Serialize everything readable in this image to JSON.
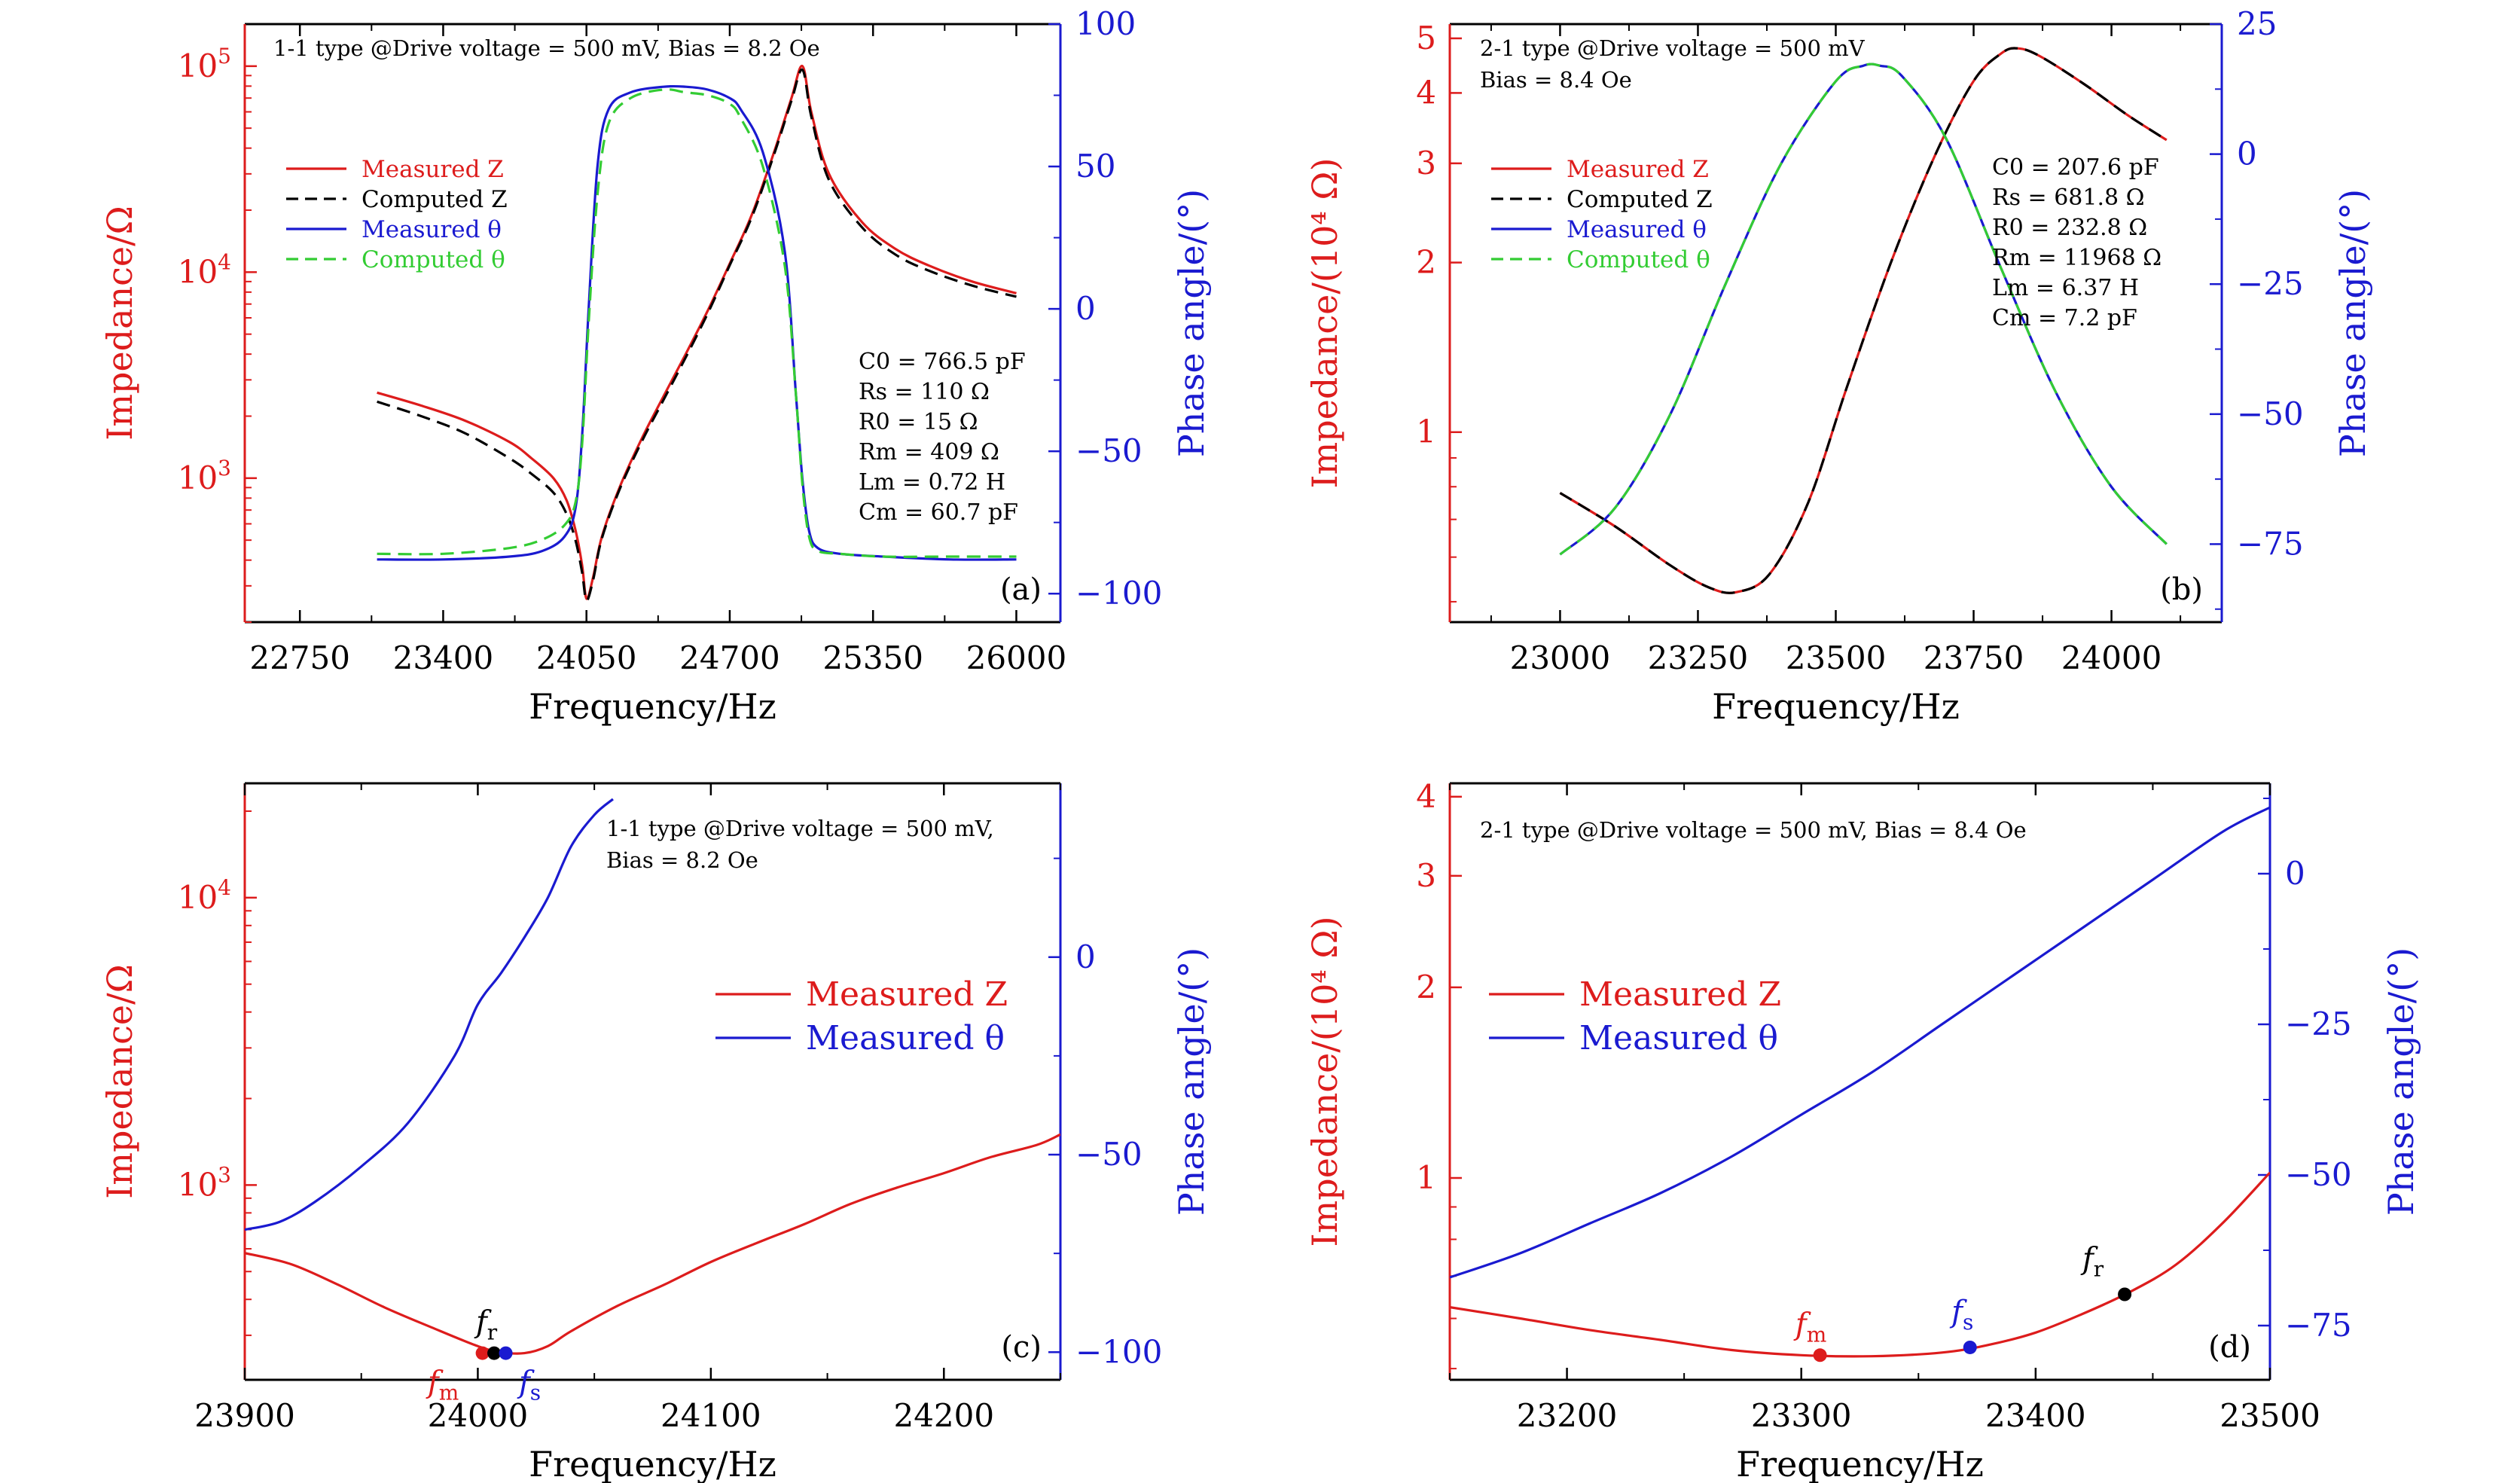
{
  "colors": {
    "red": "#dd1c1c",
    "blue": "#1a1ad0",
    "black": "#000000",
    "green": "#33cc33",
    "frame": "#000000"
  },
  "chart_data": [
    {
      "id": "a",
      "type": "line",
      "panel_label": "(a)",
      "annotation_lines": [
        "1-1 type @Drive voltage = 500 mV, Bias = 8.2 Oe"
      ],
      "xlabel": "Frequency/Hz",
      "ylabel": "Impedance/Ω",
      "y2label": "Phase angle/(°)",
      "xlim": [
        22500,
        26200
      ],
      "xticks": [
        "22750",
        "23400",
        "24050",
        "24700",
        "25350",
        "26000"
      ],
      "y_scale": "log",
      "ylim": [
        200,
        160000
      ],
      "yticks": [
        {
          "value": 1000,
          "base": "10",
          "exp": "3"
        },
        {
          "value": 10000,
          "base": "10",
          "exp": "4"
        },
        {
          "value": 100000,
          "base": "10",
          "exp": "5"
        }
      ],
      "y2lim": [
        -110,
        100
      ],
      "y2ticks": [
        "100",
        "50",
        "0",
        "−50",
        "−100"
      ],
      "legend": {
        "placement": "upper-left",
        "entries": [
          {
            "text": "Measured Z",
            "color": "red",
            "dash": false
          },
          {
            "text": "Computed Z",
            "color": "black",
            "dash": true
          },
          {
            "text": "Measured θ",
            "color": "blue",
            "dash": false
          },
          {
            "text": "Computed θ",
            "color": "green",
            "dash": true
          }
        ]
      },
      "params": [
        "C0 = 766.5 pF",
        "Rs = 110 Ω",
        "R0 = 15 Ω",
        "Rm = 409 Ω",
        "Lm = 0.72 H",
        "Cm = 60.7 pF"
      ],
      "series": [
        {
          "name": "Measured Z",
          "axis": "left",
          "color": "red",
          "x": [
            23100,
            23300,
            23500,
            23700,
            23800,
            23900,
            23960,
            24000,
            24030,
            24050,
            24080,
            24120,
            24200,
            24300,
            24400,
            24500,
            24600,
            24700,
            24800,
            24900,
            24980,
            25030,
            25070,
            25150,
            25300,
            25450,
            25600,
            25800,
            26000
          ],
          "y": [
            2600,
            2250,
            1900,
            1500,
            1250,
            1000,
            780,
            560,
            380,
            260,
            330,
            520,
            900,
            1550,
            2500,
            4000,
            6500,
            11000,
            19000,
            38000,
            70000,
            100000,
            60000,
            30000,
            17500,
            13000,
            10800,
            9000,
            7900
          ]
        },
        {
          "name": "Computed Z",
          "axis": "left",
          "color": "black",
          "dash": true,
          "x": [
            23100,
            23300,
            23500,
            23700,
            23800,
            23900,
            23960,
            24000,
            24030,
            24050,
            24080,
            24120,
            24200,
            24300,
            24400,
            24500,
            24600,
            24700,
            24800,
            24900,
            24980,
            25030,
            25070,
            25150,
            25300,
            25450,
            25600,
            25800,
            26000
          ],
          "y": [
            2350,
            2000,
            1650,
            1250,
            1050,
            850,
            670,
            500,
            350,
            255,
            320,
            510,
            880,
            1500,
            2400,
            3850,
            6300,
            10800,
            18500,
            37000,
            68000,
            96000,
            57000,
            28000,
            16500,
            12200,
            10200,
            8600,
            7600
          ]
        },
        {
          "name": "Measured θ",
          "axis": "right",
          "color": "blue",
          "x": [
            23100,
            23400,
            23700,
            23850,
            23950,
            24000,
            24030,
            24060,
            24100,
            24150,
            24250,
            24400,
            24500,
            24600,
            24700,
            24750,
            24850,
            24950,
            25000,
            25030,
            25060,
            25100,
            25200,
            25400,
            25700,
            26000
          ],
          "y": [
            -88,
            -88,
            -87,
            -85,
            -80,
            -70,
            -45,
            0,
            50,
            70,
            76,
            78,
            78,
            77,
            74,
            70,
            55,
            20,
            -30,
            -60,
            -78,
            -84,
            -86,
            -87,
            -88,
            -88
          ]
        },
        {
          "name": "Computed θ",
          "axis": "right",
          "color": "green",
          "dash": true,
          "x": [
            23100,
            23400,
            23700,
            23850,
            23950,
            24000,
            24030,
            24060,
            24100,
            24150,
            24250,
            24400,
            24500,
            24600,
            24700,
            24750,
            24850,
            24950,
            25000,
            25030,
            25060,
            25100,
            25200,
            25400,
            25700,
            26000
          ],
          "y": [
            -86,
            -86,
            -84,
            -81,
            -76,
            -68,
            -48,
            -5,
            40,
            65,
            74,
            77,
            76,
            75,
            72,
            67,
            50,
            15,
            -30,
            -62,
            -80,
            -85,
            -86,
            -87,
            -87,
            -87
          ]
        }
      ]
    },
    {
      "id": "b",
      "type": "line",
      "panel_label": "(b)",
      "annotation_lines": [
        "2-1 type @Drive voltage = 500 mV",
        "Bias = 8.4 Oe"
      ],
      "xlabel": "Frequency/Hz",
      "ylabel": "Impedance/(10⁴ Ω)",
      "y2label": "Phase angle/(°)",
      "xlim": [
        22800,
        24200
      ],
      "xticks": [
        "23000",
        "23250",
        "23500",
        "23750",
        "24000"
      ],
      "y_scale": "log",
      "ylim": [
        0.46,
        5.3
      ],
      "yticks": [
        {
          "value": 1,
          "label": "1"
        },
        {
          "value": 2,
          "label": "2"
        },
        {
          "value": 3,
          "label": "3"
        },
        {
          "value": 4,
          "label": "4"
        },
        {
          "value": 5,
          "label": "5"
        }
      ],
      "y2lim": [
        -90,
        25
      ],
      "y2ticks": [
        "25",
        "0",
        "−25",
        "−50",
        "−75"
      ],
      "legend": {
        "placement": "upper-left",
        "entries": [
          {
            "text": "Measured Z",
            "color": "red",
            "dash": false
          },
          {
            "text": "Computed Z",
            "color": "black",
            "dash": true
          },
          {
            "text": "Measured θ",
            "color": "blue",
            "dash": false
          },
          {
            "text": "Computed θ",
            "color": "green",
            "dash": true
          }
        ]
      },
      "params": [
        "C0 = 207.6 pF",
        "Rs = 681.8 Ω",
        "R0 = 232.8 Ω",
        "Rm = 11968 Ω",
        "Lm = 6.37 H",
        "Cm = 7.2 pF"
      ],
      "series": [
        {
          "name": "Measured Z",
          "axis": "left",
          "color": "red",
          "x": [
            23000,
            23100,
            23200,
            23270,
            23320,
            23380,
            23450,
            23520,
            23600,
            23680,
            23750,
            23800,
            23830,
            23870,
            23950,
            24030,
            24100
          ],
          "y": [
            0.78,
            0.68,
            0.58,
            0.53,
            0.52,
            0.56,
            0.75,
            1.2,
            2.0,
            3.1,
            4.2,
            4.7,
            4.8,
            4.65,
            4.15,
            3.65,
            3.3
          ]
        },
        {
          "name": "Computed Z",
          "axis": "left",
          "color": "black",
          "dash": true,
          "x": [
            23000,
            23100,
            23200,
            23270,
            23320,
            23380,
            23450,
            23520,
            23600,
            23680,
            23750,
            23800,
            23830,
            23870,
            23950,
            24030,
            24100
          ],
          "y": [
            0.78,
            0.68,
            0.58,
            0.53,
            0.52,
            0.56,
            0.75,
            1.2,
            2.0,
            3.1,
            4.2,
            4.7,
            4.8,
            4.65,
            4.15,
            3.65,
            3.3
          ]
        },
        {
          "name": "Measured θ",
          "axis": "right",
          "color": "blue",
          "x": [
            23000,
            23100,
            23200,
            23300,
            23400,
            23500,
            23550,
            23580,
            23620,
            23700,
            23800,
            23900,
            24000,
            24100
          ],
          "y": [
            -77,
            -68,
            -50,
            -25,
            -2,
            14,
            17,
            17,
            15,
            3,
            -22,
            -46,
            -64,
            -75
          ]
        },
        {
          "name": "Computed θ",
          "axis": "right",
          "color": "green",
          "dash": true,
          "x": [
            23000,
            23100,
            23200,
            23300,
            23400,
            23500,
            23550,
            23580,
            23620,
            23700,
            23800,
            23900,
            24000,
            24100
          ],
          "y": [
            -77,
            -68,
            -50,
            -25,
            -2,
            14,
            17,
            17,
            15,
            3,
            -22,
            -46,
            -64,
            -75
          ]
        }
      ]
    },
    {
      "id": "c",
      "type": "line",
      "panel_label": "(c)",
      "annotation_lines": [
        "1-1 type @Drive voltage = 500 mV,",
        "Bias = 8.2 Oe"
      ],
      "xlabel": "Frequency/Hz",
      "ylabel": "Impedance/Ω",
      "y2label": "Phase angle/(°)",
      "xlim": [
        23900,
        24250
      ],
      "xticks": [
        "23900",
        "24000",
        "24100",
        "24200"
      ],
      "y_scale": "log",
      "ylim": [
        210,
        25000
      ],
      "yticks": [
        {
          "value": 1000,
          "base": "10",
          "exp": "3"
        },
        {
          "value": 10000,
          "base": "10",
          "exp": "4"
        }
      ],
      "y2lim": [
        -107,
        44
      ],
      "y2ticks": [
        "0",
        "−50",
        "−100"
      ],
      "legend": {
        "placement": "center-right",
        "entries": [
          {
            "text": "Measured Z",
            "color": "red",
            "dash": false
          },
          {
            "text": "Measured θ",
            "color": "blue",
            "dash": false
          }
        ]
      },
      "markers": [
        {
          "label": "f",
          "sub": "m",
          "x": 24002,
          "y": 260,
          "color": "red"
        },
        {
          "label": "f",
          "sub": "r",
          "x": 24007,
          "y": 260,
          "color": "black"
        },
        {
          "label": "f",
          "sub": "s",
          "x": 24012,
          "y": 260,
          "color": "blue"
        }
      ],
      "series": [
        {
          "name": "Measured Z",
          "axis": "left",
          "color": "red",
          "x": [
            23900,
            23920,
            23940,
            23960,
            23980,
            24000,
            24010,
            24020,
            24030,
            24040,
            24060,
            24080,
            24100,
            24120,
            24140,
            24160,
            24180,
            24200,
            24220,
            24240,
            24250
          ],
          "y": [
            580,
            530,
            450,
            375,
            320,
            275,
            262,
            260,
            275,
            310,
            380,
            450,
            540,
            630,
            730,
            860,
            980,
            1100,
            1250,
            1380,
            1500
          ]
        },
        {
          "name": "Measured θ",
          "axis": "right",
          "color": "blue",
          "x": [
            23900,
            23915,
            23930,
            23950,
            23970,
            23990,
            24000,
            24010,
            24020,
            24030,
            24040,
            24050,
            24058
          ],
          "y": [
            -69,
            -67,
            -62,
            -53,
            -42,
            -25,
            -12,
            -4,
            5,
            15,
            28,
            36,
            40
          ]
        }
      ]
    },
    {
      "id": "d",
      "type": "line",
      "panel_label": "(d)",
      "annotation_lines": [
        "2-1 type @Drive voltage = 500 mV, Bias = 8.4 Oe"
      ],
      "xlabel": "Frequency/Hz",
      "ylabel": "Impedance/(10⁴ Ω)",
      "y2label": "Phase angle/(°)",
      "xlim": [
        23150,
        23500
      ],
      "xticks": [
        "23200",
        "23300",
        "23400",
        "23500"
      ],
      "y_scale": "log",
      "ylim": [
        0.48,
        4.2
      ],
      "yticks": [
        {
          "value": 1,
          "label": "1"
        },
        {
          "value": 2,
          "label": "2"
        },
        {
          "value": 3,
          "label": "3"
        },
        {
          "value": 4,
          "label": "4"
        }
      ],
      "y2lim": [
        -84,
        15
      ],
      "y2ticks": [
        "0",
        "−25",
        "−50",
        "−75"
      ],
      "legend": {
        "placement": "center-left",
        "entries": [
          {
            "text": "Measured Z",
            "color": "red",
            "dash": false
          },
          {
            "text": "Measured θ",
            "color": "blue",
            "dash": false
          }
        ]
      },
      "markers": [
        {
          "label": "f",
          "sub": "m",
          "x": 23308,
          "y": 0.525,
          "color": "red"
        },
        {
          "label": "f",
          "sub": "s",
          "x": 23372,
          "y": 0.54,
          "color": "blue"
        },
        {
          "label": "f",
          "sub": "r",
          "x": 23438,
          "y": 0.655,
          "color": "black"
        }
      ],
      "series": [
        {
          "name": "Measured Z",
          "axis": "left",
          "color": "red",
          "x": [
            23150,
            23180,
            23210,
            23240,
            23270,
            23300,
            23330,
            23360,
            23380,
            23400,
            23420,
            23440,
            23460,
            23480,
            23500
          ],
          "y": [
            0.625,
            0.6,
            0.575,
            0.555,
            0.535,
            0.525,
            0.523,
            0.53,
            0.545,
            0.57,
            0.61,
            0.66,
            0.73,
            0.85,
            1.02
          ]
        },
        {
          "name": "Measured θ",
          "axis": "right",
          "color": "blue",
          "x": [
            23150,
            23180,
            23210,
            23240,
            23270,
            23300,
            23330,
            23360,
            23390,
            23420,
            23450,
            23480,
            23500
          ],
          "y": [
            -67,
            -63,
            -58,
            -53,
            -47,
            -40,
            -33,
            -25,
            -17,
            -9,
            -1,
            7,
            11
          ]
        }
      ]
    }
  ]
}
